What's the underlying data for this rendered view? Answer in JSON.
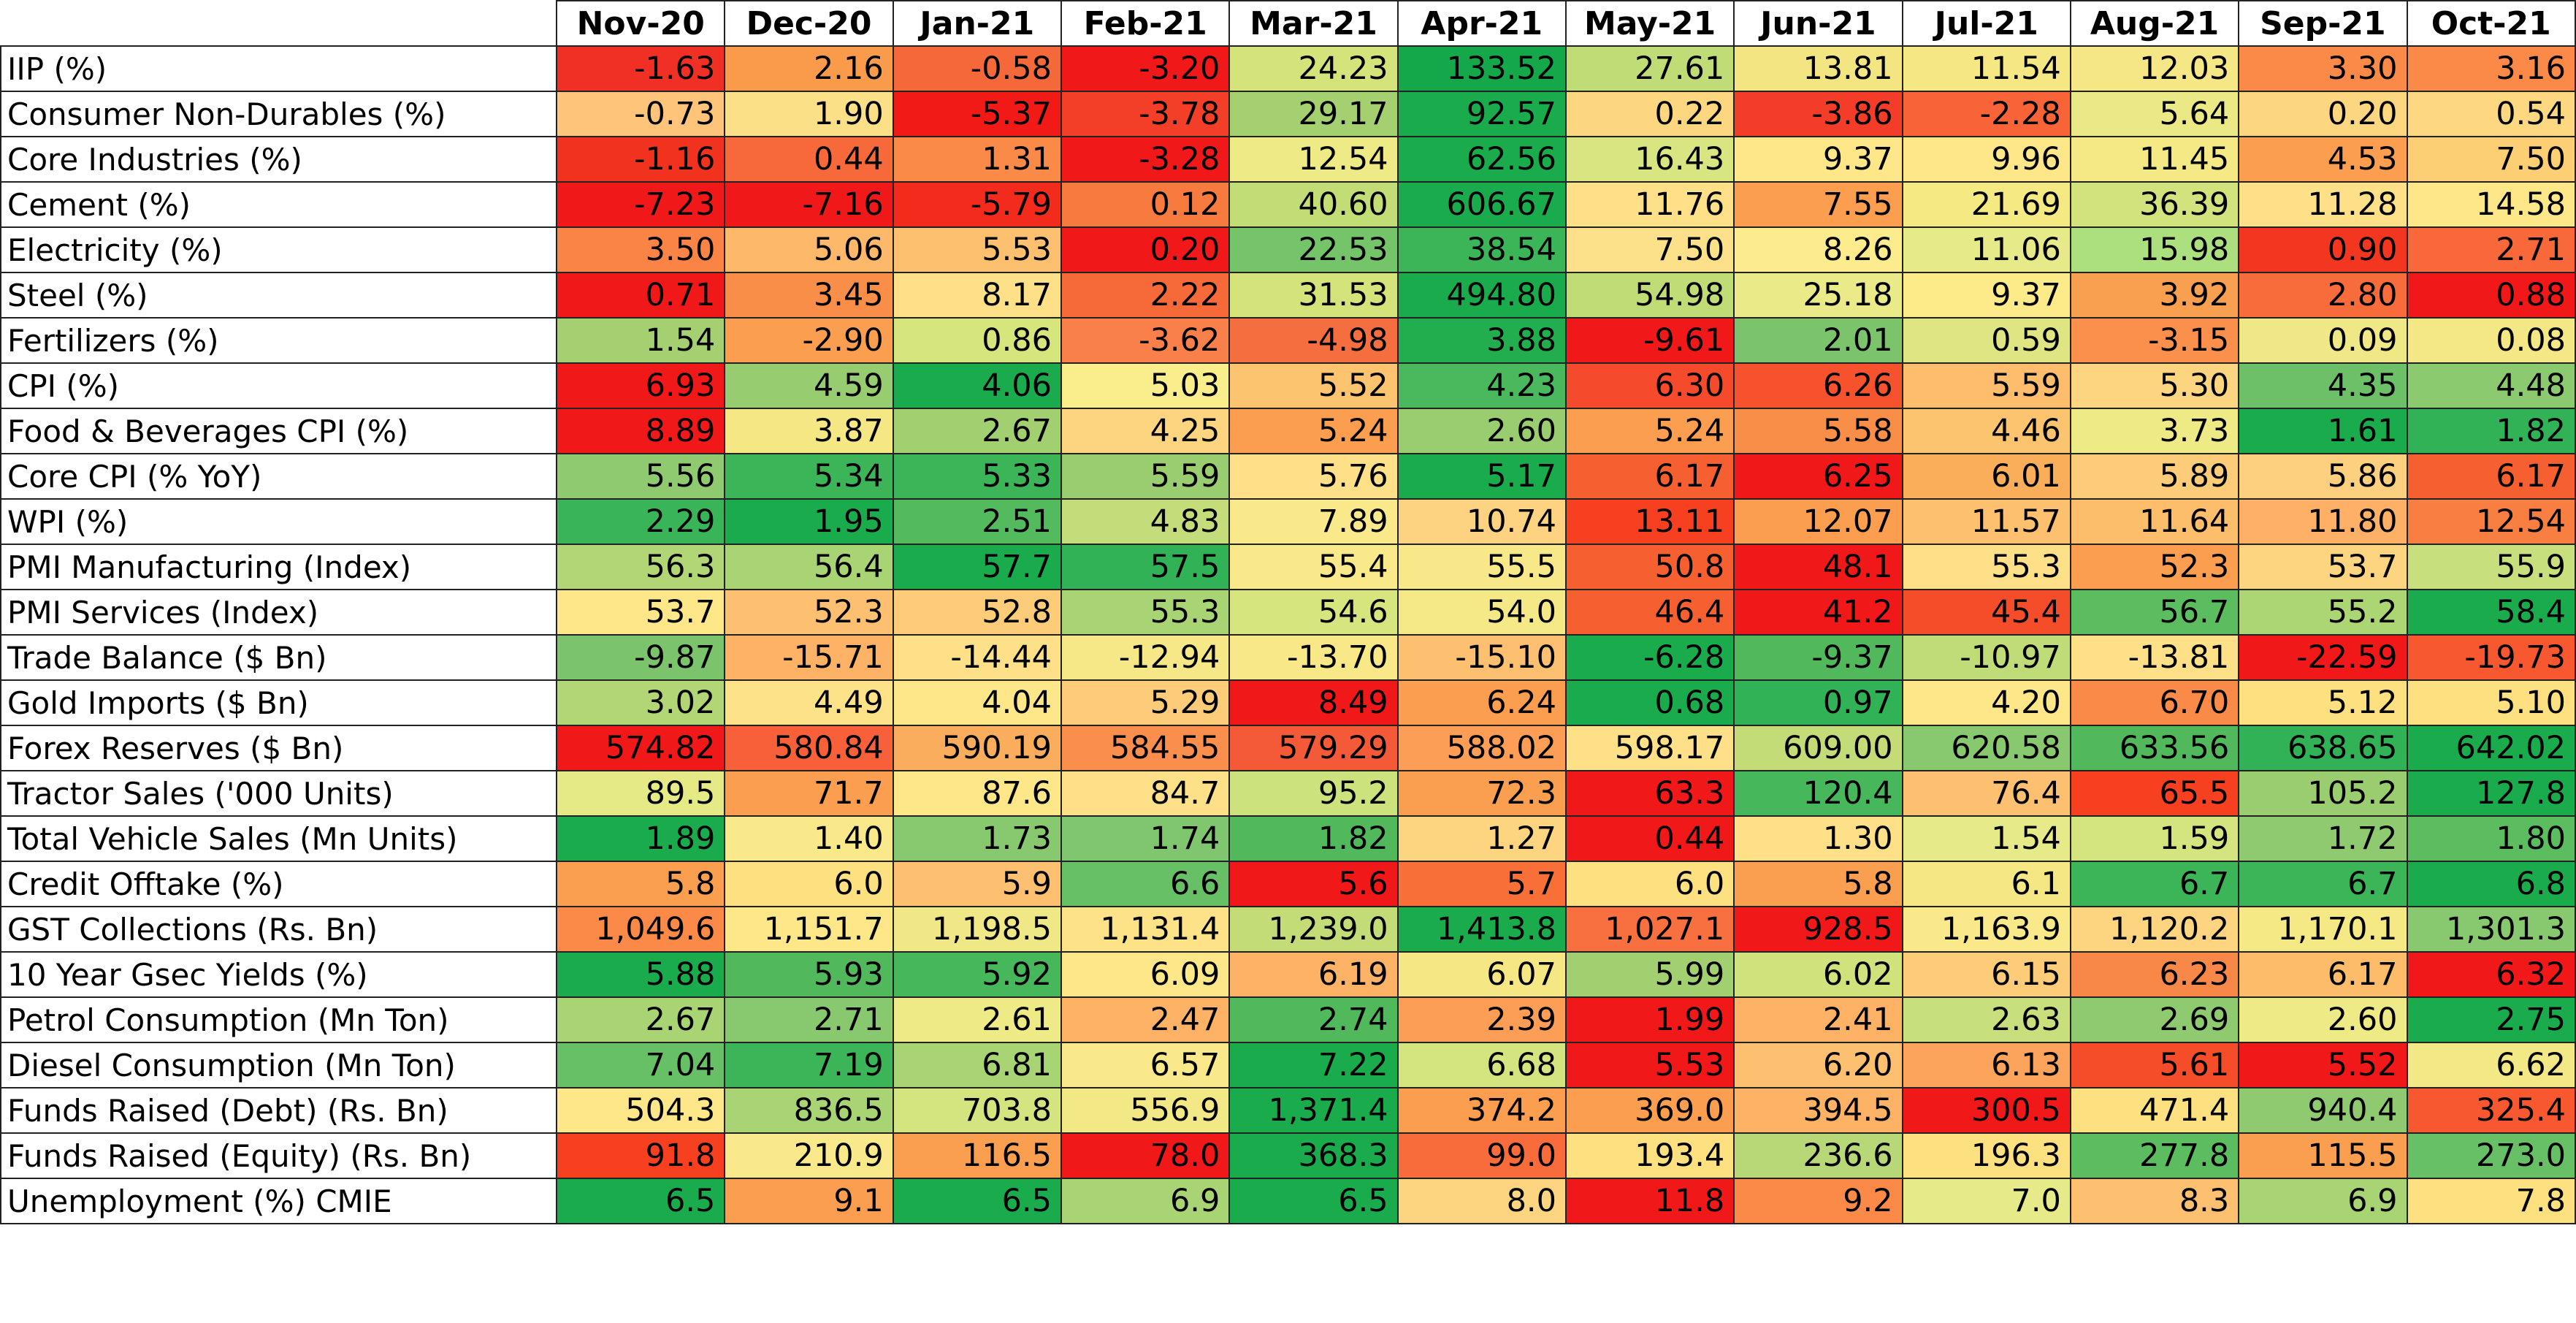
{
  "chart_data": {
    "type": "heatmap",
    "color_scale": {
      "low": "#f8696b",
      "mid": "#ffeb84",
      "high": "#63be7b"
    },
    "columns": [
      "Nov-20",
      "Dec-20",
      "Jan-21",
      "Feb-21",
      "Mar-21",
      "Apr-21",
      "May-21",
      "Jun-21",
      "Jul-21",
      "Aug-21",
      "Sep-21",
      "Oct-21"
    ],
    "rows": [
      {
        "label": "IIP (%)",
        "display": [
          "-1.63",
          "2.16",
          "-0.58",
          "-3.20",
          "24.23",
          "133.52",
          "27.61",
          "13.81",
          "11.54",
          "12.03",
          "3.30",
          "3.16"
        ],
        "colors": [
          "#f03024",
          "#f99b4a",
          "#f5683a",
          "#f01818",
          "#d4e47a",
          "#14a84a",
          "#c0dc76",
          "#f4e583",
          "#f5e784",
          "#f5e785",
          "#fb8a48",
          "#fb8a48"
        ]
      },
      {
        "label": "Consumer Non-Durables (%)",
        "display": [
          "-0.73",
          "1.90",
          "-5.37",
          "-3.78",
          "29.17",
          "92.57",
          "0.22",
          "-3.86",
          "-2.28",
          "5.64",
          "0.20",
          "0.54"
        ],
        "colors": [
          "#fdc47a",
          "#fce087",
          "#f21a16",
          "#f43f28",
          "#a4d070",
          "#1aab4c",
          "#fdd680",
          "#f43d28",
          "#f86438",
          "#ebe985",
          "#fdd680",
          "#fdd881"
        ]
      },
      {
        "label": "Core Industries (%)",
        "display": [
          "-1.16",
          "0.44",
          "1.31",
          "-3.28",
          "12.54",
          "62.56",
          "16.43",
          "9.37",
          "9.96",
          "11.45",
          "4.53",
          "7.50"
        ],
        "colors": [
          "#f0321e",
          "#f7683a",
          "#f98a48",
          "#f01818",
          "#eeeb86",
          "#1aab4c",
          "#d8e580",
          "#fde788",
          "#fde788",
          "#f5e985",
          "#fc9e50",
          "#fdcf74"
        ]
      },
      {
        "label": "Cement (%)",
        "display": [
          "-7.23",
          "-7.16",
          "-5.79",
          "0.12",
          "40.60",
          "606.67",
          "11.76",
          "7.55",
          "21.69",
          "36.39",
          "11.28",
          "14.58"
        ],
        "colors": [
          "#f01818",
          "#f01818",
          "#f22b1c",
          "#f77a3e",
          "#c2dc76",
          "#1aab4c",
          "#fde088",
          "#fc9e50",
          "#f4e983",
          "#d2e27c",
          "#fde088",
          "#fde788"
        ]
      },
      {
        "label": "Electricity (%)",
        "display": [
          "3.50",
          "5.06",
          "5.53",
          "0.20",
          "22.53",
          "38.54",
          "7.50",
          "8.26",
          "11.06",
          "15.98",
          "0.90",
          "2.71"
        ],
        "colors": [
          "#fa8446",
          "#fdb86a",
          "#fdc06e",
          "#f01818",
          "#76c46a",
          "#3cb458",
          "#fde08a",
          "#fdec8e",
          "#e6ea88",
          "#ace07e",
          "#f33620",
          "#f8683a"
        ]
      },
      {
        "label": "Steel (%)",
        "display": [
          "0.71",
          "3.45",
          "8.17",
          "2.22",
          "31.53",
          "494.80",
          "54.98",
          "25.18",
          "9.37",
          "3.92",
          "2.80",
          "0.88"
        ],
        "colors": [
          "#f01818",
          "#f88e48",
          "#fde088",
          "#f66a3a",
          "#d4e47a",
          "#1aab4c",
          "#c0dc76",
          "#eaea88",
          "#fdea88",
          "#f8a050",
          "#f86c3c",
          "#f01818"
        ]
      },
      {
        "label": "Fertilizers (%)",
        "display": [
          "1.54",
          "-2.90",
          "0.86",
          "-3.62",
          "-4.98",
          "3.88",
          "-9.61",
          "2.01",
          "0.59",
          "-3.15",
          "0.09",
          "0.08"
        ],
        "colors": [
          "#a4d072",
          "#fb9e50",
          "#d6e57c",
          "#f9804a",
          "#f46e40",
          "#22ad4e",
          "#f01818",
          "#7cc46c",
          "#dee582",
          "#fb904c",
          "#f0e886",
          "#f4e886"
        ]
      },
      {
        "label": "CPI (%)",
        "display": [
          "6.93",
          "4.59",
          "4.06",
          "5.03",
          "5.52",
          "4.23",
          "6.30",
          "6.26",
          "5.59",
          "5.30",
          "4.35",
          "4.48"
        ],
        "colors": [
          "#f01818",
          "#98cc70",
          "#1aab4c",
          "#f9ed8c",
          "#fdc470",
          "#4ab85c",
          "#f64a2c",
          "#f6522e",
          "#fdbd6c",
          "#fdd480",
          "#6ec068",
          "#8cca70"
        ]
      },
      {
        "label": "Food & Beverages CPI (%)",
        "display": [
          "8.89",
          "3.87",
          "2.67",
          "4.25",
          "5.24",
          "2.60",
          "5.24",
          "5.58",
          "4.46",
          "3.73",
          "1.61",
          "1.82"
        ],
        "colors": [
          "#f01818",
          "#f5e784",
          "#a2cf70",
          "#fdd480",
          "#fb9e50",
          "#9acd70",
          "#fb9e50",
          "#f98e48",
          "#fdc470",
          "#eeea86",
          "#1aab4c",
          "#32b256"
        ]
      },
      {
        "label": "Core CPI (% YoY)",
        "display": [
          "5.56",
          "5.34",
          "5.33",
          "5.59",
          "5.76",
          "5.17",
          "6.17",
          "6.25",
          "6.01",
          "5.89",
          "5.86",
          "6.17"
        ],
        "colors": [
          "#90ca70",
          "#3cb458",
          "#3cb458",
          "#9acd70",
          "#fde088",
          "#1aab4c",
          "#f66030",
          "#f01818",
          "#fbae5a",
          "#fdcc78",
          "#fdd080",
          "#f66030"
        ]
      },
      {
        "label": "WPI (%)",
        "display": [
          "2.29",
          "1.95",
          "2.51",
          "4.83",
          "7.89",
          "10.74",
          "13.11",
          "12.07",
          "11.57",
          "11.64",
          "11.80",
          "12.54"
        ],
        "colors": [
          "#3ab458",
          "#1aab4c",
          "#54ba5e",
          "#c4dd7a",
          "#fae98a",
          "#fdd280",
          "#f64020",
          "#fb9e50",
          "#fdc06e",
          "#fdbe6c",
          "#fdb066",
          "#f87e42"
        ]
      },
      {
        "label": "PMI Manufacturing (Index)",
        "display": [
          "56.3",
          "56.4",
          "57.7",
          "57.5",
          "55.4",
          "55.5",
          "50.8",
          "48.1",
          "55.3",
          "52.3",
          "53.7",
          "55.9"
        ],
        "colors": [
          "#b2d676",
          "#a8d474",
          "#1aab4c",
          "#32b256",
          "#fae98a",
          "#f8e88a",
          "#f66030",
          "#f01818",
          "#fde088",
          "#fb9e50",
          "#fdd480",
          "#c8df7e"
        ]
      },
      {
        "label": "PMI Services (Index)",
        "display": [
          "53.7",
          "52.3",
          "52.8",
          "55.3",
          "54.6",
          "54.0",
          "46.4",
          "41.2",
          "45.4",
          "56.7",
          "55.2",
          "58.4"
        ],
        "colors": [
          "#fde788",
          "#fdc070",
          "#fdcc78",
          "#a8d474",
          "#d6e57e",
          "#f5e886",
          "#f66030",
          "#f01818",
          "#f54c2a",
          "#5cbc60",
          "#acd674",
          "#1aab4c"
        ]
      },
      {
        "label": "Trade Balance ($ Bn)",
        "display": [
          "-9.87",
          "-15.71",
          "-14.44",
          "-12.94",
          "-13.70",
          "-15.10",
          "-6.28",
          "-9.37",
          "-10.97",
          "-13.81",
          "-22.59",
          "-19.73"
        ],
        "colors": [
          "#7cc46c",
          "#fdb266",
          "#fde088",
          "#f6e886",
          "#f8e888",
          "#fdc070",
          "#1aab4c",
          "#52b85c",
          "#c0dc78",
          "#fde088",
          "#f01818",
          "#f85830"
        ]
      },
      {
        "label": "Gold Imports ($ Bn)",
        "display": [
          "3.02",
          "4.49",
          "4.04",
          "5.29",
          "8.49",
          "6.24",
          "0.68",
          "0.97",
          "4.20",
          "6.70",
          "5.12",
          "5.10"
        ],
        "colors": [
          "#b2d676",
          "#fde288",
          "#fde788",
          "#fdcc78",
          "#f01818",
          "#fb9e50",
          "#1aab4c",
          "#32b256",
          "#fde788",
          "#fa8a48",
          "#fde080",
          "#fde080"
        ]
      },
      {
        "label": "Forex Reserves ($ Bn)",
        "display": [
          "574.82",
          "580.84",
          "590.19",
          "584.55",
          "579.29",
          "588.02",
          "598.17",
          "609.00",
          "620.58",
          "633.56",
          "638.65",
          "642.02"
        ],
        "colors": [
          "#f01818",
          "#f8603a",
          "#fbad5e",
          "#fa8e4c",
          "#f55a38",
          "#fd9e56",
          "#fde088",
          "#c4dc78",
          "#88c86e",
          "#52b85c",
          "#32b256",
          "#1aab4c"
        ]
      },
      {
        "label": "Tractor Sales ('000 Units)",
        "display": [
          "89.5",
          "71.7",
          "87.6",
          "84.7",
          "95.2",
          "72.3",
          "63.3",
          "120.4",
          "76.4",
          "65.5",
          "105.2",
          "127.8"
        ],
        "colors": [
          "#e6ea86",
          "#fb9e50",
          "#fde788",
          "#fde088",
          "#cce27c",
          "#fa9e50",
          "#f01818",
          "#46b75a",
          "#fdc070",
          "#f64020",
          "#9acd70",
          "#1aab4c"
        ]
      },
      {
        "label": "Total Vehicle Sales (Mn Units)",
        "display": [
          "1.89",
          "1.40",
          "1.73",
          "1.74",
          "1.82",
          "1.27",
          "0.44",
          "1.30",
          "1.54",
          "1.59",
          "1.72",
          "1.80"
        ],
        "colors": [
          "#1aab4c",
          "#fae98a",
          "#88c86e",
          "#80c66e",
          "#52b85c",
          "#fdd480",
          "#f01818",
          "#fde088",
          "#e6ea88",
          "#d4e47e",
          "#90ca70",
          "#5cbc60"
        ]
      },
      {
        "label": "Credit Offtake (%)",
        "display": [
          "5.8",
          "6.0",
          "5.9",
          "6.6",
          "5.6",
          "5.7",
          "6.0",
          "5.8",
          "6.1",
          "6.7",
          "6.7",
          "6.8"
        ],
        "colors": [
          "#fa9e50",
          "#fde080",
          "#fdc070",
          "#68c066",
          "#f01818",
          "#f87038",
          "#fde080",
          "#fa9e50",
          "#f5e784",
          "#3cb458",
          "#3cb458",
          "#1aab4c"
        ]
      },
      {
        "label": "GST Collections (Rs. Bn)",
        "display": [
          "1,049.6",
          "1,151.7",
          "1,198.5",
          "1,131.4",
          "1,239.0",
          "1,413.8",
          "1,027.1",
          "928.5",
          "1,163.9",
          "1,120.2",
          "1,170.1",
          "1,301.3"
        ],
        "colors": [
          "#fb8a48",
          "#fde788",
          "#f0e886",
          "#fde288",
          "#c4dc78",
          "#1aab4c",
          "#f87040",
          "#f01818",
          "#fae98a",
          "#fdd480",
          "#f5e985",
          "#88c86e"
        ]
      },
      {
        "label": "10 Year Gsec Yields (%)",
        "display": [
          "5.88",
          "5.93",
          "5.92",
          "6.09",
          "6.19",
          "6.07",
          "5.99",
          "6.02",
          "6.15",
          "6.23",
          "6.17",
          "6.32"
        ],
        "colors": [
          "#1aab4c",
          "#52b85c",
          "#46b75a",
          "#fde788",
          "#fdb266",
          "#f5e884",
          "#a2d070",
          "#d0e27c",
          "#fdcc78",
          "#f88848",
          "#fdbc6a",
          "#f01818"
        ]
      },
      {
        "label": "Petrol Consumption (Mn Ton)",
        "display": [
          "2.67",
          "2.71",
          "2.61",
          "2.47",
          "2.74",
          "2.39",
          "1.99",
          "2.41",
          "2.63",
          "2.69",
          "2.60",
          "2.75"
        ],
        "colors": [
          "#a8d474",
          "#88c86e",
          "#eeea86",
          "#fdb266",
          "#52b85c",
          "#fd9e56",
          "#f01818",
          "#fdb266",
          "#c8df7e",
          "#90ca70",
          "#eeea86",
          "#1aab4c"
        ]
      },
      {
        "label": "Diesel Consumption (Mn Ton)",
        "display": [
          "7.04",
          "7.19",
          "6.81",
          "6.57",
          "7.22",
          "6.68",
          "5.53",
          "6.20",
          "6.13",
          "5.61",
          "5.52",
          "6.62"
        ],
        "colors": [
          "#68c066",
          "#3cb458",
          "#a8d474",
          "#fae98a",
          "#1aab4c",
          "#d4e47e",
          "#f01818",
          "#fdc070",
          "#fda45c",
          "#f54c2a",
          "#f01818",
          "#f2e886"
        ]
      },
      {
        "label": "Funds Raised (Debt) (Rs. Bn)",
        "display": [
          "504.3",
          "836.5",
          "703.8",
          "556.9",
          "1,371.4",
          "374.2",
          "369.0",
          "394.5",
          "300.5",
          "471.4",
          "940.4",
          "325.4"
        ],
        "colors": [
          "#fde788",
          "#a8d474",
          "#d4e47e",
          "#f2e886",
          "#1aab4c",
          "#fb9e50",
          "#fb9e50",
          "#fdb266",
          "#f01818",
          "#fde080",
          "#90ca70",
          "#f85830"
        ]
      },
      {
        "label": "Funds Raised (Equity) (Rs. Bn)",
        "display": [
          "91.8",
          "210.9",
          "116.5",
          "78.0",
          "368.3",
          "99.0",
          "193.4",
          "236.6",
          "196.3",
          "277.8",
          "115.5",
          "273.0"
        ],
        "colors": [
          "#f64020",
          "#fae98a",
          "#fa9e50",
          "#f01818",
          "#1aab4c",
          "#f86c3c",
          "#fde080",
          "#b8d878",
          "#fde080",
          "#5cbc60",
          "#fa9e50",
          "#68c066"
        ]
      },
      {
        "label": "Unemployment (%) CMIE",
        "display": [
          "6.5",
          "9.1",
          "6.5",
          "6.9",
          "6.5",
          "8.0",
          "11.8",
          "9.2",
          "7.0",
          "8.3",
          "6.9",
          "7.8"
        ],
        "colors": [
          "#1aab4c",
          "#fb9e50",
          "#1aab4c",
          "#a8d474",
          "#1aab4c",
          "#fdd480",
          "#f01818",
          "#fb8a48",
          "#e6ea88",
          "#fdc070",
          "#a8d474",
          "#fde080"
        ]
      }
    ]
  }
}
